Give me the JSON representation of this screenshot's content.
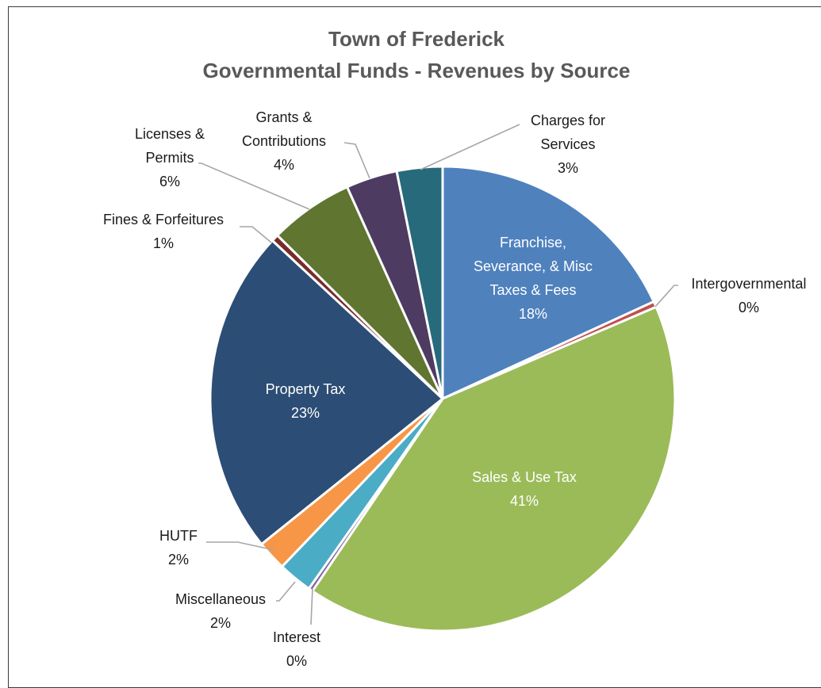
{
  "chart_data": {
    "type": "pie",
    "title": "Town of Frederick",
    "subtitle": "Governmental Funds  - Revenues by Source",
    "start_angle_deg": 0,
    "direction": "clockwise",
    "slices": [
      {
        "name": "Franchise, Severance, & Misc Taxes & Fees",
        "lines": [
          "Franchise,",
          "Severance, & Misc",
          "Taxes & Fees"
        ],
        "value": 18.3,
        "pct_label": "18%",
        "color": "#4f81bd",
        "label_pos": "inside"
      },
      {
        "name": "Intergovernmental",
        "lines": [
          "Intergovernmental"
        ],
        "value": 0.4,
        "pct_label": "0%",
        "color": "#c0504d",
        "label_pos": "outside"
      },
      {
        "name": "Sales & Use Tax",
        "lines": [
          "Sales & Use Tax"
        ],
        "value": 41.3,
        "pct_label": "41%",
        "color": "#9bbb59",
        "label_pos": "inside"
      },
      {
        "name": "Interest",
        "lines": [
          "Interest"
        ],
        "value": 0.3,
        "pct_label": "0%",
        "color": "#8064a2",
        "label_pos": "outside"
      },
      {
        "name": "Miscellaneous",
        "lines": [
          "Miscellaneous"
        ],
        "value": 2.4,
        "pct_label": "2%",
        "color": "#4bacc6",
        "label_pos": "outside"
      },
      {
        "name": "HUTF",
        "lines": [
          "HUTF"
        ],
        "value": 2.1,
        "pct_label": "2%",
        "color": "#f79646",
        "label_pos": "outside"
      },
      {
        "name": "Property Tax",
        "lines": [
          "Property Tax"
        ],
        "value": 22.9,
        "pct_label": "23%",
        "color": "#2c4d75",
        "label_pos": "inside"
      },
      {
        "name": "Fines & Forfeitures",
        "lines": [
          "Fines & Forfeitures"
        ],
        "value": 0.5,
        "pct_label": "1%",
        "color": "#772c2a",
        "label_pos": "outside"
      },
      {
        "name": "Licenses & Permits",
        "lines": [
          "Licenses &",
          "Permits"
        ],
        "value": 5.9,
        "pct_label": "6%",
        "color": "#5f7530",
        "label_pos": "outside"
      },
      {
        "name": "Grants & Contributions",
        "lines": [
          "Grants &",
          "Contributions"
        ],
        "value": 3.6,
        "pct_label": "4%",
        "color": "#4d3b62",
        "label_pos": "outside"
      },
      {
        "name": "Charges for Services",
        "lines": [
          "Charges for",
          "Services"
        ],
        "value": 3.2,
        "pct_label": "3%",
        "color": "#276a7c",
        "label_pos": "outside"
      }
    ]
  }
}
